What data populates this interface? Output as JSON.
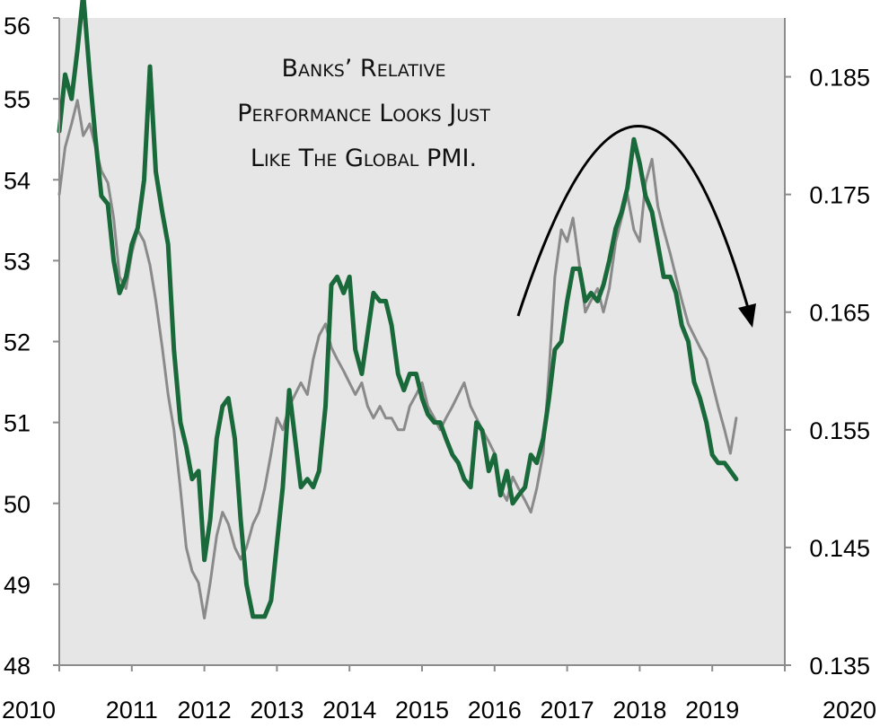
{
  "chart_data": {
    "type": "line",
    "title": "",
    "xlabel": "",
    "ylabel": "",
    "xlim": [
      2010,
      2020
    ],
    "ylim_left": [
      48,
      56
    ],
    "ylim_right": [
      0.135,
      0.19
    ],
    "grid": false,
    "legend": "none",
    "colors": {
      "pmi": "#19693a",
      "banks": "#8a8a8a",
      "plot_bg": "#e6e6e6",
      "axis": "#8c8c8c",
      "arrow": "#000000"
    },
    "x_ticks": [
      "2010",
      "2011",
      "2012",
      "2013",
      "2014",
      "2015",
      "2016",
      "2017",
      "2018",
      "2019",
      "2020"
    ],
    "left_ticks": [
      "48",
      "49",
      "50",
      "51",
      "52",
      "53",
      "54",
      "55",
      "56"
    ],
    "right_ticks": [
      "0.135",
      "0.145",
      "0.155",
      "0.165",
      "0.175",
      "0.185"
    ],
    "annotation": [
      "Banks’ Relative",
      "Performance Looks Just",
      "Like The Global PMI."
    ],
    "series": [
      {
        "axis": "left",
        "x": [
          2010.0,
          2010.08,
          2010.17,
          2010.25,
          2010.33,
          2010.42,
          2010.5,
          2010.58,
          2010.67,
          2010.75,
          2010.83,
          2010.92,
          2011.0,
          2011.08,
          2011.17,
          2011.25,
          2011.33,
          2011.42,
          2011.5,
          2011.58,
          2011.67,
          2011.75,
          2011.83,
          2011.92,
          2012.0,
          2012.08,
          2012.17,
          2012.25,
          2012.33,
          2012.42,
          2012.5,
          2012.58,
          2012.67,
          2012.75,
          2012.83,
          2012.92,
          2013.0,
          2013.08,
          2013.17,
          2013.25,
          2013.33,
          2013.42,
          2013.5,
          2013.58,
          2013.67,
          2013.75,
          2013.83,
          2013.92,
          2014.0,
          2014.08,
          2014.17,
          2014.25,
          2014.33,
          2014.42,
          2014.5,
          2014.58,
          2014.67,
          2014.75,
          2014.83,
          2014.92,
          2015.0,
          2015.08,
          2015.17,
          2015.25,
          2015.33,
          2015.42,
          2015.5,
          2015.58,
          2015.67,
          2015.75,
          2015.83,
          2015.92,
          2016.0,
          2016.08,
          2016.17,
          2016.25,
          2016.33,
          2016.42,
          2016.5,
          2016.58,
          2016.67,
          2016.75,
          2016.83,
          2016.92,
          2017.0,
          2017.08,
          2017.17,
          2017.25,
          2017.33,
          2017.42,
          2017.5,
          2017.58,
          2017.67,
          2017.75,
          2017.83,
          2017.92,
          2018.0,
          2018.08,
          2018.17,
          2018.25,
          2018.33,
          2018.42,
          2018.5,
          2018.58,
          2018.67,
          2018.75,
          2018.83,
          2018.92,
          2019.0,
          2019.08,
          2019.17,
          2019.25,
          2019.33
        ],
        "values": [
          54.6,
          55.3,
          55.0,
          55.6,
          56.3,
          55.3,
          54.5,
          53.8,
          53.7,
          53.0,
          52.6,
          52.8,
          53.2,
          53.4,
          54.0,
          55.4,
          54.1,
          53.6,
          53.2,
          51.9,
          51.0,
          50.7,
          50.3,
          50.4,
          49.3,
          49.8,
          50.8,
          51.2,
          51.3,
          50.8,
          49.8,
          49.0,
          48.6,
          48.6,
          48.6,
          48.8,
          49.5,
          50.2,
          51.4,
          50.8,
          50.2,
          50.3,
          50.2,
          50.4,
          51.2,
          52.7,
          52.8,
          52.6,
          52.8,
          51.9,
          51.6,
          52.1,
          52.6,
          52.5,
          52.5,
          52.2,
          51.6,
          51.4,
          51.6,
          51.6,
          51.3,
          51.1,
          51.0,
          51.0,
          50.8,
          50.6,
          50.5,
          50.3,
          50.2,
          51.0,
          50.9,
          50.4,
          50.6,
          50.1,
          50.4,
          50.0,
          50.1,
          50.2,
          50.6,
          50.5,
          50.8,
          51.3,
          51.9,
          52.0,
          52.5,
          52.9,
          52.9,
          52.5,
          52.6,
          52.5,
          52.7,
          53.0,
          53.4,
          53.6,
          53.9,
          54.5,
          54.2,
          53.8,
          53.6,
          53.2,
          52.8,
          52.8,
          52.6,
          52.2,
          52.0,
          51.5,
          51.3,
          51.0,
          50.6,
          50.5,
          50.5,
          50.4,
          50.3
        ]
      },
      {
        "axis": "right",
        "x": [
          2010.0,
          2010.08,
          2010.17,
          2010.25,
          2010.33,
          2010.42,
          2010.5,
          2010.58,
          2010.67,
          2010.75,
          2010.83,
          2010.92,
          2011.0,
          2011.08,
          2011.17,
          2011.25,
          2011.33,
          2011.42,
          2011.5,
          2011.58,
          2011.67,
          2011.75,
          2011.83,
          2011.92,
          2012.0,
          2012.08,
          2012.17,
          2012.25,
          2012.33,
          2012.42,
          2012.5,
          2012.58,
          2012.67,
          2012.75,
          2012.83,
          2012.92,
          2013.0,
          2013.08,
          2013.17,
          2013.25,
          2013.33,
          2013.42,
          2013.5,
          2013.58,
          2013.67,
          2013.75,
          2013.83,
          2013.92,
          2014.0,
          2014.08,
          2014.17,
          2014.25,
          2014.33,
          2014.42,
          2014.5,
          2014.58,
          2014.67,
          2014.75,
          2014.83,
          2014.92,
          2015.0,
          2015.08,
          2015.17,
          2015.25,
          2015.33,
          2015.42,
          2015.5,
          2015.58,
          2015.67,
          2015.75,
          2015.83,
          2015.92,
          2016.0,
          2016.08,
          2016.17,
          2016.25,
          2016.33,
          2016.42,
          2016.5,
          2016.58,
          2016.67,
          2016.75,
          2016.83,
          2016.92,
          2017.0,
          2017.08,
          2017.17,
          2017.25,
          2017.33,
          2017.42,
          2017.5,
          2017.58,
          2017.67,
          2017.75,
          2017.83,
          2017.92,
          2018.0,
          2018.08,
          2018.17,
          2018.25,
          2018.33,
          2018.42,
          2018.5,
          2018.58,
          2018.67,
          2018.75,
          2018.83,
          2018.92,
          2019.0,
          2019.08,
          2019.17,
          2019.25,
          2019.33
        ],
        "values": [
          0.175,
          0.179,
          0.181,
          0.183,
          0.18,
          0.181,
          0.179,
          0.177,
          0.176,
          0.173,
          0.168,
          0.167,
          0.17,
          0.172,
          0.171,
          0.169,
          0.166,
          0.162,
          0.158,
          0.155,
          0.15,
          0.145,
          0.143,
          0.142,
          0.139,
          0.142,
          0.146,
          0.148,
          0.147,
          0.145,
          0.144,
          0.145,
          0.147,
          0.148,
          0.15,
          0.153,
          0.156,
          0.155,
          0.157,
          0.158,
          0.159,
          0.158,
          0.161,
          0.163,
          0.164,
          0.162,
          0.161,
          0.16,
          0.159,
          0.158,
          0.159,
          0.157,
          0.156,
          0.157,
          0.156,
          0.156,
          0.155,
          0.155,
          0.157,
          0.158,
          0.159,
          0.157,
          0.156,
          0.155,
          0.156,
          0.157,
          0.158,
          0.159,
          0.157,
          0.156,
          0.155,
          0.154,
          0.153,
          0.15,
          0.149,
          0.151,
          0.15,
          0.149,
          0.148,
          0.15,
          0.153,
          0.16,
          0.168,
          0.172,
          0.171,
          0.173,
          0.169,
          0.165,
          0.166,
          0.167,
          0.165,
          0.167,
          0.171,
          0.173,
          0.175,
          0.172,
          0.171,
          0.176,
          0.178,
          0.174,
          0.172,
          0.17,
          0.168,
          0.166,
          0.164,
          0.163,
          0.162,
          0.161,
          0.159,
          0.157,
          0.155,
          0.153,
          0.156
        ]
      }
    ]
  }
}
